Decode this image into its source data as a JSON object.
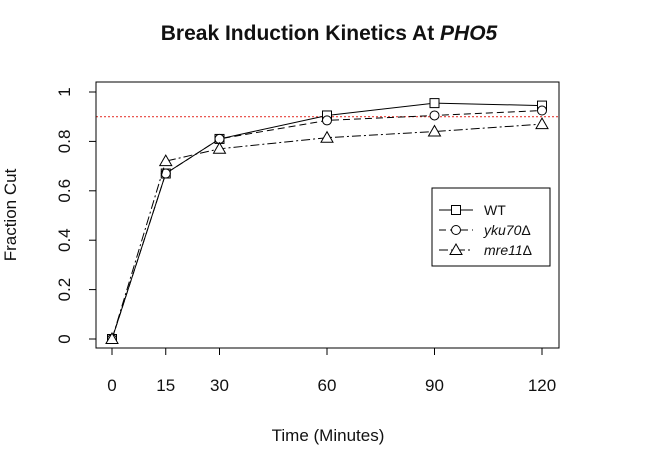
{
  "chart_data": {
    "type": "line",
    "title": {
      "prefix": "Break Induction Kinetics At ",
      "gene": "PHO5"
    },
    "xlabel": "Time (Minutes)",
    "ylabel": "Fraction Cut",
    "x": [
      0,
      15,
      30,
      60,
      90,
      120
    ],
    "xticks": [
      0,
      15,
      30,
      60,
      90,
      120
    ],
    "yticks": [
      0,
      0.2,
      0.4,
      0.6,
      0.8,
      1
    ],
    "yticklabels": [
      "0",
      "0.2",
      "0.4",
      "0.6",
      "0.8",
      "1"
    ],
    "xlim": [
      0,
      120
    ],
    "ylim": [
      0,
      1
    ],
    "reference_line": {
      "y": 0.9,
      "color": "#e8403a",
      "style": "dotted"
    },
    "series": [
      {
        "label_main": "WT",
        "label_suffix": "",
        "italic": false,
        "marker": "square",
        "dash": "",
        "values": [
          0,
          0.67,
          0.81,
          0.905,
          0.955,
          0.945
        ]
      },
      {
        "label_main": "yku70",
        "label_suffix": "Δ",
        "italic": true,
        "marker": "circle",
        "dash": "7 4",
        "values": [
          0,
          0.67,
          0.81,
          0.885,
          0.905,
          0.925
        ]
      },
      {
        "label_main": "mre11",
        "label_suffix": "Δ",
        "italic": true,
        "marker": "triangle",
        "dash": "9 3 2 3",
        "values": [
          0,
          0.72,
          0.77,
          0.815,
          0.84,
          0.87
        ]
      }
    ],
    "legend": {
      "placement": "right"
    },
    "grid": false
  }
}
